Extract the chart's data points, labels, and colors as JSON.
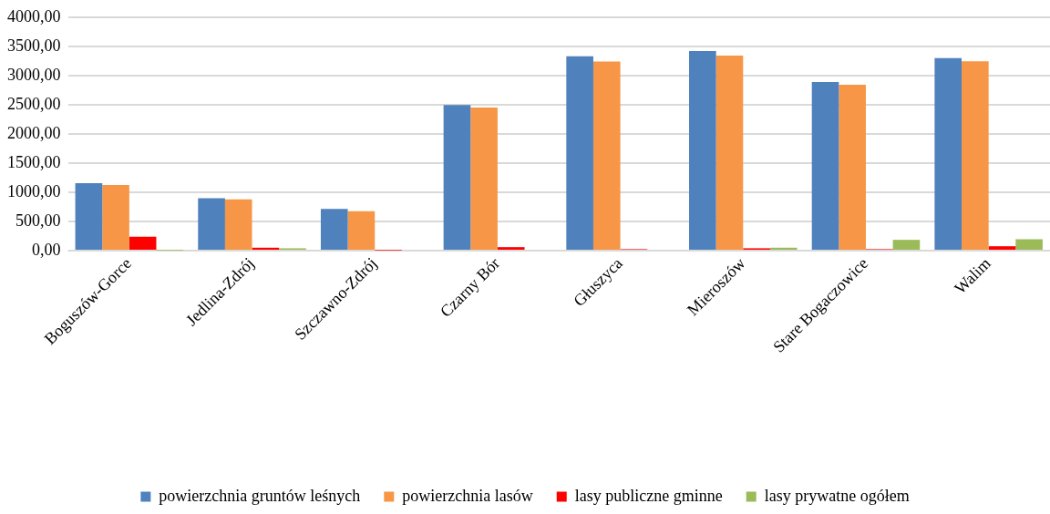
{
  "chart_data": {
    "type": "bar",
    "categories": [
      "Boguszów-Gorce",
      "Jedlina-Zdrój",
      "Szczawno-Zdrój",
      "Czarny Bór",
      "Głuszyca",
      "Mieroszów",
      "Stare Bogaczowice",
      "Walim"
    ],
    "series": [
      {
        "name": "powierzchnia gruntów leśnych",
        "color": "#4f81bd",
        "values": [
          1155,
          897,
          715,
          2494,
          3330,
          3420,
          2890,
          3300
        ]
      },
      {
        "name": "powierzchnia lasów",
        "color": "#f79646",
        "values": [
          1125,
          877,
          675,
          2450,
          3240,
          3340,
          2840,
          3245
        ]
      },
      {
        "name": "lasy publiczne gminne",
        "color": "#ff0000",
        "values": [
          240,
          50,
          5,
          60,
          25,
          40,
          25,
          75
        ]
      },
      {
        "name": "lasy prywatne ogółem",
        "color": "#9bbb59",
        "values": [
          5,
          40,
          0,
          0,
          0,
          50,
          185,
          195
        ]
      }
    ],
    "ylim": [
      0,
      4000
    ],
    "yticks": [
      {
        "value": 0,
        "label": "0,00"
      },
      {
        "value": 500,
        "label": "500,00"
      },
      {
        "value": 1000,
        "label": "1000,00"
      },
      {
        "value": 1500,
        "label": "1500,00"
      },
      {
        "value": 2000,
        "label": "2000,00"
      },
      {
        "value": 2500,
        "label": "2500,00"
      },
      {
        "value": 3000,
        "label": "3000,00"
      },
      {
        "value": 3500,
        "label": "3500,00"
      },
      {
        "value": 4000,
        "label": "4000,00"
      }
    ],
    "grid": "y",
    "legend": "bottom"
  }
}
